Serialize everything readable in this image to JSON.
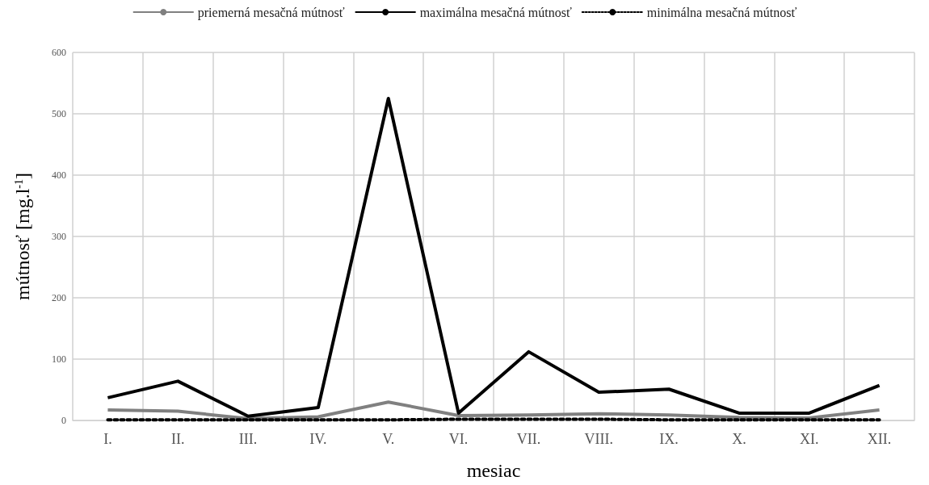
{
  "chart_data": {
    "type": "line",
    "xlabel": "mesiac",
    "ylabel": "mútnosť [mg.l$^{-1}$]",
    "categories": [
      "I.",
      "II.",
      "III.",
      "IV.",
      "V.",
      "VI.",
      "VII.",
      "VIII.",
      "IX.",
      "X.",
      "XI.",
      "XII."
    ],
    "series": [
      {
        "name": "priemerná mesačná mútnosť",
        "color": "#808080",
        "line_style": "solid",
        "values": [
          17,
          15,
          3,
          6,
          30,
          8,
          9,
          11,
          9,
          5,
          4,
          17
        ]
      },
      {
        "name": "maximálna mesačná mútnosť",
        "color": "#000000",
        "line_style": "solid",
        "values": [
          37,
          64,
          7,
          21,
          525,
          12,
          112,
          46,
          51,
          12,
          12,
          57
        ]
      },
      {
        "name": "minimálna mesačná mútnosť",
        "color": "#000000",
        "line_style": "dotted",
        "values": [
          1,
          1,
          1,
          1,
          1,
          2,
          2,
          2,
          1,
          1,
          1,
          1
        ]
      }
    ],
    "ylim": [
      0,
      600
    ],
    "yticks": [
      0,
      100,
      200,
      300,
      400,
      500,
      600
    ],
    "grid": true,
    "legend": "top",
    "marker": "none"
  }
}
